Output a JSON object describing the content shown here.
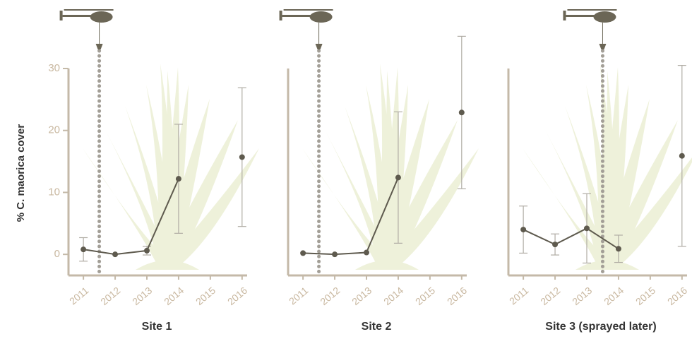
{
  "chart_data": [
    {
      "type": "line",
      "title": "Site 1",
      "ylabel": "% C. maorica cover",
      "x": [
        2011,
        2012,
        2013,
        2014,
        2015,
        2016
      ],
      "values": [
        0.8,
        0,
        0.6,
        12.2,
        null,
        15.7
      ],
      "errors": [
        1.9,
        null,
        0.7,
        8.8,
        null,
        11.2
      ],
      "xlim": [
        2010.53,
        2016.16
      ],
      "xticks": [
        2011,
        2012,
        2013,
        2014,
        2015,
        2016
      ],
      "ylim": [
        -3.4,
        30
      ],
      "yticks": [
        0,
        10,
        20,
        30
      ],
      "spray": 2011.5,
      "color": "#5e5a4e"
    },
    {
      "type": "line",
      "title": "Site 2",
      "x": [
        2011,
        2012,
        2013,
        2014,
        2015,
        2016
      ],
      "values": [
        0.2,
        0,
        0.3,
        12.4,
        null,
        22.9
      ],
      "errors": [
        null,
        null,
        null,
        10.6,
        null,
        12.3
      ],
      "xlim": [
        2010.53,
        2016.16
      ],
      "xticks": [
        2011,
        2012,
        2013,
        2014,
        2015,
        2016
      ],
      "ylim": [
        -3.4,
        30
      ],
      "spray": 2011.5,
      "color": "#5e5a4e"
    },
    {
      "type": "line",
      "title": "Site 3 (sprayed later)",
      "x": [
        2011,
        2012,
        2013,
        2014,
        2015,
        2016
      ],
      "values": [
        4.0,
        1.6,
        4.2,
        0.9,
        null,
        15.9
      ],
      "errors": [
        3.8,
        1.7,
        5.6,
        2.2,
        null,
        14.6
      ],
      "xlim": [
        2010.53,
        2016.16
      ],
      "xticks": [
        2011,
        2012,
        2013,
        2014,
        2015,
        2016
      ],
      "ylim": [
        -3.4,
        30
      ],
      "spray": 2013.5,
      "color": "#5e5a4e"
    }
  ]
}
